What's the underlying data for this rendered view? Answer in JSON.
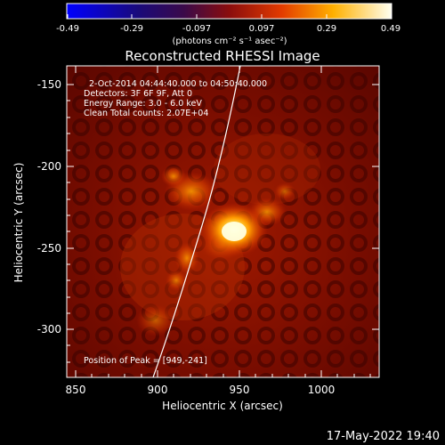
{
  "colorbar": {
    "tick_labels": [
      "-0.49",
      "-0.29",
      "-0.097",
      "0.097",
      "0.29",
      "0.49"
    ],
    "unit_label": "(photons cm⁻² s⁻¹ asec⁻²)"
  },
  "image": {
    "title": "Reconstructed RHESSI Image",
    "annotations": [
      "2-Oct-2014 04:44:40.000 to 04:50:40.000",
      "Detectors: 3F 6F 9F, Att 0",
      "Energy Range: 3.0 - 6.0 keV",
      "Clean     Total counts: 2.07E+04"
    ],
    "peak_label": "Position of Peak = [949,-241]"
  },
  "axes": {
    "xlabel": "Heliocentric X (arcsec)",
    "ylabel": "Heliocentric Y (arcsec)",
    "xlim": [
      850,
      1035
    ],
    "ylim": [
      -328,
      -138
    ],
    "x_ticks": [
      "850",
      "900",
      "950",
      "1000"
    ],
    "y_ticks": [
      "-150",
      "-200",
      "-250",
      "-300"
    ]
  },
  "footer": {
    "date": "17-May-2022 19:40"
  }
}
